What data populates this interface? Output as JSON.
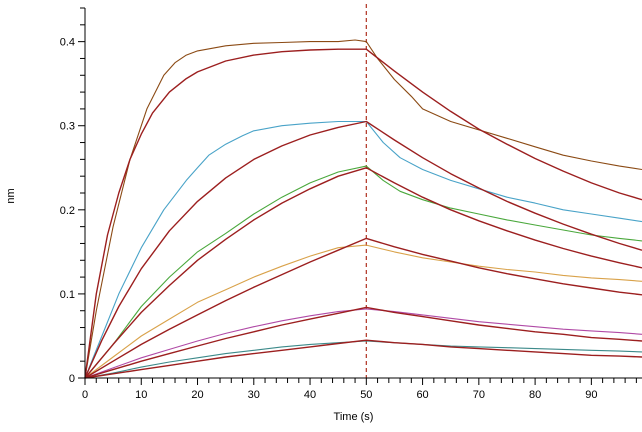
{
  "chart_data": {
    "type": "line",
    "xlabel": "Time (s)",
    "ylabel": "nm",
    "xlim": [
      0,
      99
    ],
    "ylim": [
      0,
      0.44
    ],
    "x_ticks": [
      0,
      10,
      20,
      30,
      40,
      50,
      60,
      70,
      80,
      90
    ],
    "y_ticks": [
      0,
      0.1,
      0.2,
      0.3,
      0.4
    ],
    "y_tick_labels": [
      "0",
      "0.1",
      "0.2",
      "0.3",
      "0.4"
    ],
    "x_minor_step": 2,
    "marker_line": {
      "x": 50,
      "color": "#b03020",
      "style": "dashed"
    },
    "grid": false,
    "series": [
      {
        "kind": "measured",
        "color": "#8b4a14",
        "points": [
          [
            0,
            0
          ],
          [
            2,
            0.08
          ],
          [
            5,
            0.18
          ],
          [
            8,
            0.26
          ],
          [
            11,
            0.32
          ],
          [
            14,
            0.36
          ],
          [
            16,
            0.375
          ],
          [
            18,
            0.384
          ],
          [
            20,
            0.389
          ],
          [
            25,
            0.395
          ],
          [
            30,
            0.398
          ],
          [
            35,
            0.399
          ],
          [
            40,
            0.4
          ],
          [
            45,
            0.4
          ],
          [
            48,
            0.402
          ],
          [
            50,
            0.4
          ],
          [
            52,
            0.38
          ],
          [
            55,
            0.355
          ],
          [
            58,
            0.335
          ],
          [
            60,
            0.32
          ],
          [
            65,
            0.305
          ],
          [
            70,
            0.295
          ],
          [
            75,
            0.285
          ],
          [
            80,
            0.275
          ],
          [
            85,
            0.265
          ],
          [
            90,
            0.258
          ],
          [
            95,
            0.252
          ],
          [
            99,
            0.248
          ]
        ]
      },
      {
        "kind": "fit",
        "color": "#9c1f1f",
        "points": [
          [
            0,
            0
          ],
          [
            2,
            0.1
          ],
          [
            4,
            0.17
          ],
          [
            6,
            0.22
          ],
          [
            8,
            0.26
          ],
          [
            10,
            0.29
          ],
          [
            12,
            0.315
          ],
          [
            15,
            0.34
          ],
          [
            18,
            0.356
          ],
          [
            20,
            0.364
          ],
          [
            25,
            0.377
          ],
          [
            30,
            0.384
          ],
          [
            35,
            0.388
          ],
          [
            40,
            0.39
          ],
          [
            45,
            0.391
          ],
          [
            50,
            0.391
          ],
          [
            55,
            0.365
          ],
          [
            60,
            0.34
          ],
          [
            65,
            0.317
          ],
          [
            70,
            0.296
          ],
          [
            75,
            0.278
          ],
          [
            80,
            0.261
          ],
          [
            85,
            0.246
          ],
          [
            90,
            0.232
          ],
          [
            95,
            0.22
          ],
          [
            99,
            0.212
          ]
        ]
      },
      {
        "kind": "measured",
        "color": "#49a3c8",
        "points": [
          [
            0,
            0
          ],
          [
            3,
            0.05
          ],
          [
            6,
            0.1
          ],
          [
            10,
            0.155
          ],
          [
            14,
            0.2
          ],
          [
            18,
            0.235
          ],
          [
            20,
            0.25
          ],
          [
            22,
            0.265
          ],
          [
            25,
            0.278
          ],
          [
            28,
            0.288
          ],
          [
            30,
            0.294
          ],
          [
            35,
            0.3
          ],
          [
            40,
            0.303
          ],
          [
            45,
            0.305
          ],
          [
            50,
            0.305
          ],
          [
            53,
            0.28
          ],
          [
            56,
            0.262
          ],
          [
            60,
            0.248
          ],
          [
            65,
            0.235
          ],
          [
            70,
            0.225
          ],
          [
            75,
            0.215
          ],
          [
            80,
            0.208
          ],
          [
            85,
            0.2
          ],
          [
            90,
            0.195
          ],
          [
            95,
            0.19
          ],
          [
            99,
            0.186
          ]
        ]
      },
      {
        "kind": "fit",
        "color": "#9c1f1f",
        "points": [
          [
            0,
            0
          ],
          [
            3,
            0.045
          ],
          [
            6,
            0.085
          ],
          [
            10,
            0.13
          ],
          [
            15,
            0.175
          ],
          [
            20,
            0.21
          ],
          [
            25,
            0.238
          ],
          [
            30,
            0.26
          ],
          [
            35,
            0.276
          ],
          [
            40,
            0.289
          ],
          [
            45,
            0.298
          ],
          [
            50,
            0.305
          ],
          [
            55,
            0.283
          ],
          [
            60,
            0.262
          ],
          [
            65,
            0.243
          ],
          [
            70,
            0.226
          ],
          [
            75,
            0.21
          ],
          [
            80,
            0.196
          ],
          [
            85,
            0.183
          ],
          [
            90,
            0.171
          ],
          [
            95,
            0.16
          ],
          [
            99,
            0.152
          ]
        ]
      },
      {
        "kind": "measured",
        "color": "#4aa83c",
        "points": [
          [
            0,
            0
          ],
          [
            5,
            0.04
          ],
          [
            10,
            0.085
          ],
          [
            15,
            0.12
          ],
          [
            20,
            0.15
          ],
          [
            25,
            0.172
          ],
          [
            30,
            0.195
          ],
          [
            35,
            0.215
          ],
          [
            40,
            0.232
          ],
          [
            45,
            0.245
          ],
          [
            50,
            0.252
          ],
          [
            53,
            0.235
          ],
          [
            56,
            0.222
          ],
          [
            60,
            0.212
          ],
          [
            65,
            0.202
          ],
          [
            70,
            0.195
          ],
          [
            75,
            0.188
          ],
          [
            80,
            0.182
          ],
          [
            85,
            0.176
          ],
          [
            90,
            0.17
          ],
          [
            95,
            0.166
          ],
          [
            99,
            0.163
          ]
        ]
      },
      {
        "kind": "fit",
        "color": "#9c1f1f",
        "points": [
          [
            0,
            0
          ],
          [
            5,
            0.04
          ],
          [
            10,
            0.078
          ],
          [
            15,
            0.11
          ],
          [
            20,
            0.14
          ],
          [
            25,
            0.165
          ],
          [
            30,
            0.188
          ],
          [
            35,
            0.208
          ],
          [
            40,
            0.225
          ],
          [
            45,
            0.24
          ],
          [
            50,
            0.25
          ],
          [
            55,
            0.232
          ],
          [
            60,
            0.215
          ],
          [
            65,
            0.2
          ],
          [
            70,
            0.187
          ],
          [
            75,
            0.175
          ],
          [
            80,
            0.164
          ],
          [
            85,
            0.154
          ],
          [
            90,
            0.145
          ],
          [
            95,
            0.137
          ],
          [
            99,
            0.131
          ]
        ]
      },
      {
        "kind": "measured",
        "color": "#d9a24a",
        "points": [
          [
            0,
            0
          ],
          [
            5,
            0.025
          ],
          [
            10,
            0.05
          ],
          [
            15,
            0.07
          ],
          [
            20,
            0.09
          ],
          [
            25,
            0.105
          ],
          [
            30,
            0.12
          ],
          [
            35,
            0.133
          ],
          [
            40,
            0.145
          ],
          [
            45,
            0.155
          ],
          [
            50,
            0.158
          ],
          [
            55,
            0.15
          ],
          [
            60,
            0.143
          ],
          [
            65,
            0.138
          ],
          [
            70,
            0.133
          ],
          [
            75,
            0.129
          ],
          [
            80,
            0.126
          ],
          [
            85,
            0.122
          ],
          [
            90,
            0.119
          ],
          [
            95,
            0.117
          ],
          [
            99,
            0.115
          ]
        ]
      },
      {
        "kind": "fit",
        "color": "#9c1f1f",
        "points": [
          [
            0,
            0
          ],
          [
            5,
            0.02
          ],
          [
            10,
            0.04
          ],
          [
            15,
            0.058
          ],
          [
            20,
            0.075
          ],
          [
            25,
            0.092
          ],
          [
            30,
            0.108
          ],
          [
            35,
            0.123
          ],
          [
            40,
            0.138
          ],
          [
            45,
            0.152
          ],
          [
            50,
            0.166
          ],
          [
            55,
            0.156
          ],
          [
            60,
            0.147
          ],
          [
            65,
            0.139
          ],
          [
            70,
            0.131
          ],
          [
            75,
            0.124
          ],
          [
            80,
            0.118
          ],
          [
            85,
            0.112
          ],
          [
            90,
            0.107
          ],
          [
            95,
            0.102
          ],
          [
            99,
            0.099
          ]
        ]
      },
      {
        "kind": "measured",
        "color": "#b04aa6",
        "points": [
          [
            0,
            0
          ],
          [
            5,
            0.012
          ],
          [
            10,
            0.024
          ],
          [
            15,
            0.034
          ],
          [
            20,
            0.044
          ],
          [
            25,
            0.053
          ],
          [
            30,
            0.061
          ],
          [
            35,
            0.068
          ],
          [
            40,
            0.074
          ],
          [
            45,
            0.079
          ],
          [
            50,
            0.082
          ],
          [
            55,
            0.079
          ],
          [
            60,
            0.075
          ],
          [
            65,
            0.071
          ],
          [
            70,
            0.067
          ],
          [
            75,
            0.064
          ],
          [
            80,
            0.061
          ],
          [
            85,
            0.058
          ],
          [
            90,
            0.056
          ],
          [
            95,
            0.054
          ],
          [
            99,
            0.052
          ]
        ]
      },
      {
        "kind": "fit",
        "color": "#9c1f1f",
        "points": [
          [
            0,
            0
          ],
          [
            5,
            0.01
          ],
          [
            10,
            0.02
          ],
          [
            15,
            0.029
          ],
          [
            20,
            0.038
          ],
          [
            25,
            0.047
          ],
          [
            30,
            0.055
          ],
          [
            35,
            0.063
          ],
          [
            40,
            0.07
          ],
          [
            45,
            0.077
          ],
          [
            50,
            0.084
          ],
          [
            55,
            0.078
          ],
          [
            60,
            0.073
          ],
          [
            65,
            0.068
          ],
          [
            70,
            0.063
          ],
          [
            75,
            0.059
          ],
          [
            80,
            0.055
          ],
          [
            85,
            0.052
          ],
          [
            90,
            0.048
          ],
          [
            95,
            0.046
          ],
          [
            99,
            0.044
          ]
        ]
      },
      {
        "kind": "measured",
        "color": "#3c8a8a",
        "points": [
          [
            0,
            0
          ],
          [
            5,
            0.006
          ],
          [
            10,
            0.013
          ],
          [
            15,
            0.019
          ],
          [
            20,
            0.024
          ],
          [
            25,
            0.029
          ],
          [
            30,
            0.033
          ],
          [
            35,
            0.037
          ],
          [
            40,
            0.04
          ],
          [
            45,
            0.042
          ],
          [
            50,
            0.044
          ],
          [
            55,
            0.042
          ],
          [
            60,
            0.04
          ],
          [
            65,
            0.038
          ],
          [
            70,
            0.037
          ],
          [
            75,
            0.036
          ],
          [
            80,
            0.035
          ],
          [
            85,
            0.034
          ],
          [
            90,
            0.033
          ],
          [
            95,
            0.032
          ],
          [
            99,
            0.031
          ]
        ]
      },
      {
        "kind": "fit",
        "color": "#9c1f1f",
        "points": [
          [
            0,
            0
          ],
          [
            5,
            0.005
          ],
          [
            10,
            0.01
          ],
          [
            15,
            0.015
          ],
          [
            20,
            0.02
          ],
          [
            25,
            0.025
          ],
          [
            30,
            0.029
          ],
          [
            35,
            0.033
          ],
          [
            40,
            0.037
          ],
          [
            45,
            0.041
          ],
          [
            50,
            0.045
          ],
          [
            55,
            0.042
          ],
          [
            60,
            0.04
          ],
          [
            65,
            0.037
          ],
          [
            70,
            0.035
          ],
          [
            75,
            0.033
          ],
          [
            80,
            0.031
          ],
          [
            85,
            0.029
          ],
          [
            90,
            0.027
          ],
          [
            95,
            0.026
          ],
          [
            99,
            0.025
          ]
        ]
      }
    ]
  }
}
